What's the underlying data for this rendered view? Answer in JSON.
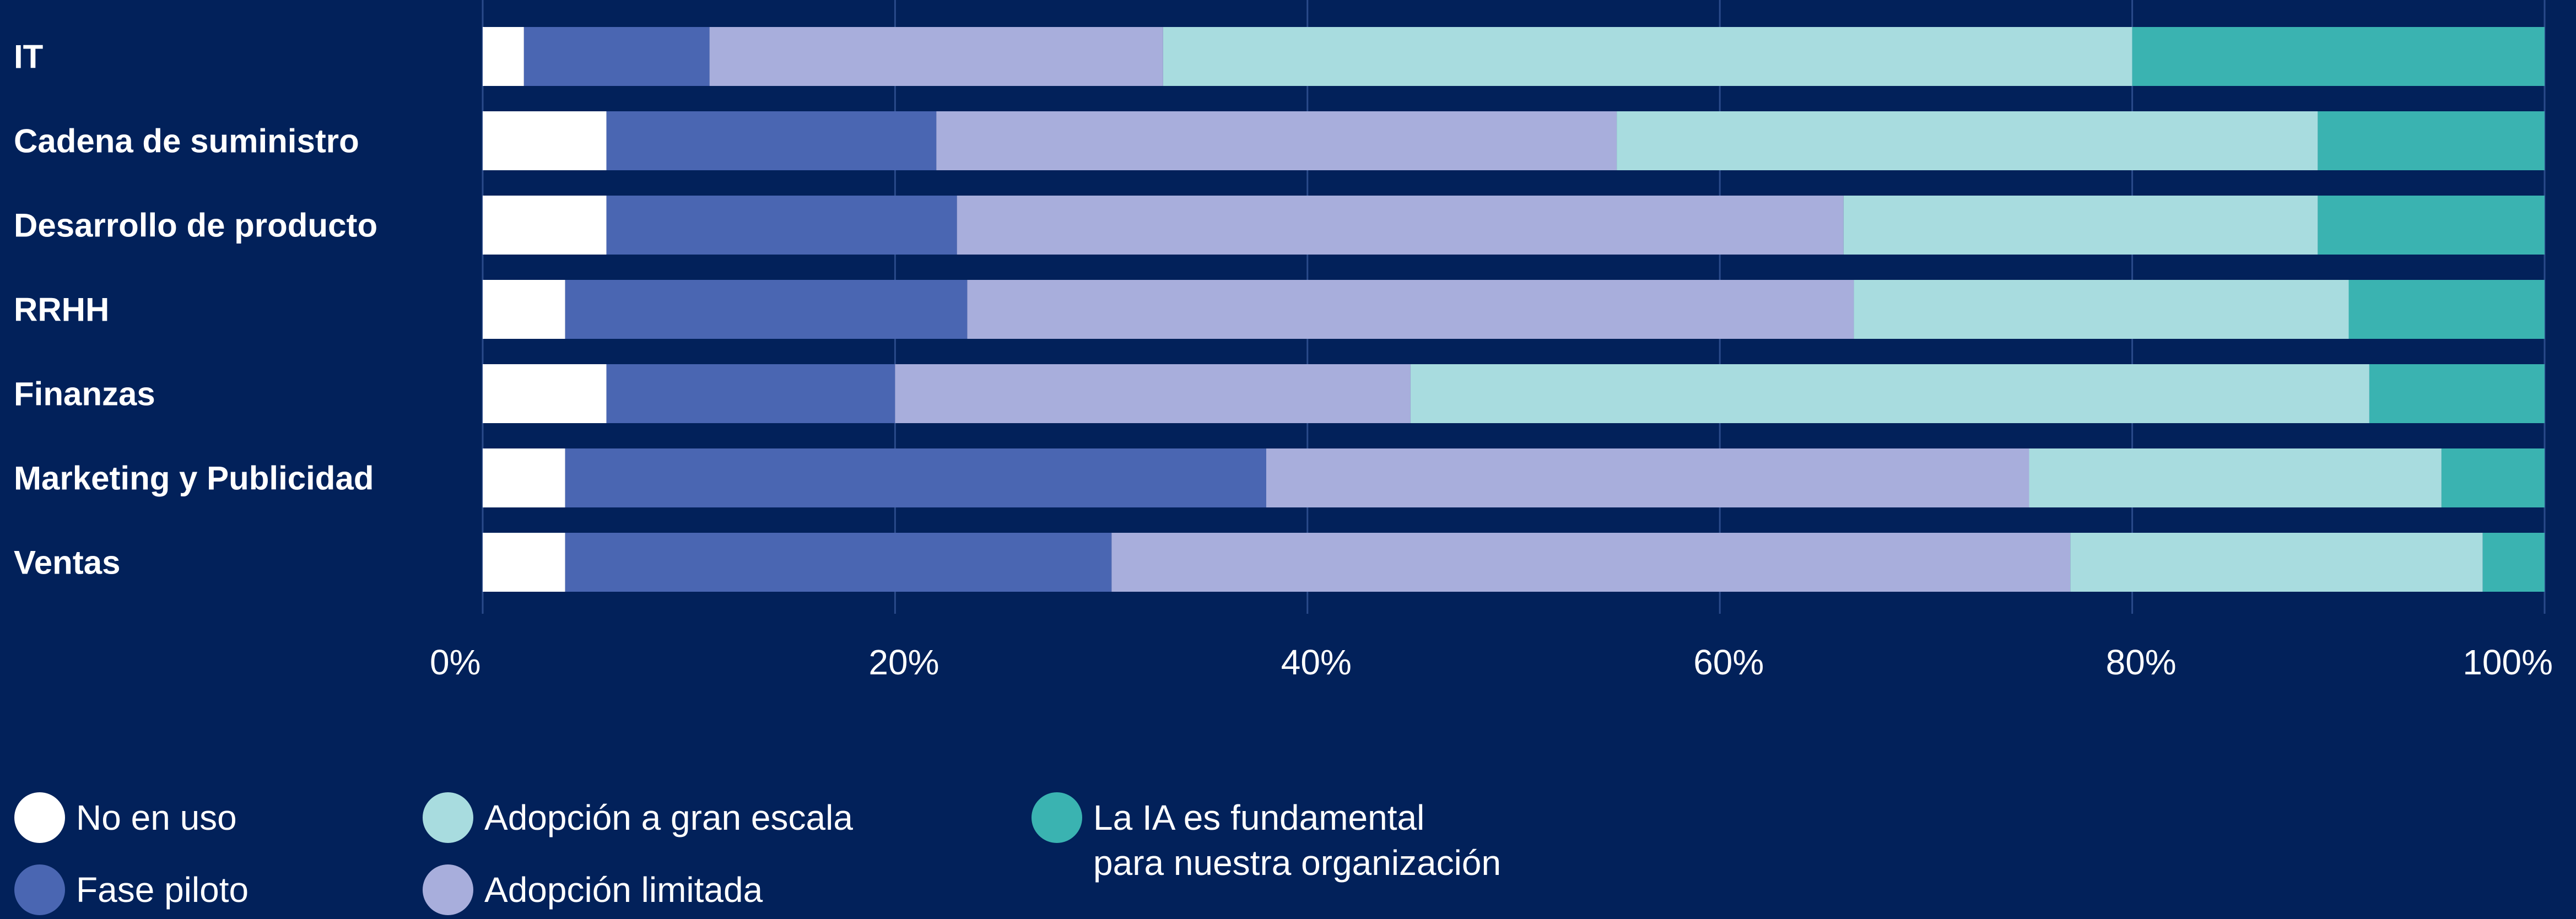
{
  "chart_data": {
    "type": "bar",
    "orientation": "horizontal",
    "stacked": true,
    "normalized": true,
    "categories": [
      "IT",
      "Cadena de suministro",
      "Desarrollo de producto",
      "RRHH",
      "Finanzas",
      "Marketing y Publicidad",
      "Ventas"
    ],
    "series": [
      {
        "name": "No en uso",
        "color": "#ffffff",
        "values": [
          2,
          6,
          6,
          4,
          6,
          4,
          4
        ]
      },
      {
        "name": "Fase piloto",
        "color": "#4a66b2",
        "values": [
          9,
          16,
          17,
          19.5,
          14,
          34,
          26.5
        ]
      },
      {
        "name": "Adopción limitada",
        "color": "#a8aedc",
        "values": [
          22,
          33,
          43,
          43,
          25,
          37,
          46.5
        ]
      },
      {
        "name": "Adopción a gran escala",
        "color": "#a8dcdf",
        "values": [
          47,
          34,
          23,
          24,
          46.5,
          20,
          20
        ]
      },
      {
        "name": "La IA es fundamental para nuestra organización",
        "color": "#3ab3b1",
        "values": [
          20,
          11,
          11,
          9.5,
          8.5,
          5,
          3
        ]
      }
    ],
    "xticks": [
      "0%",
      "20%",
      "40%",
      "60%",
      "80%",
      "100%"
    ],
    "xlim": [
      0,
      100
    ],
    "grid": true,
    "legend_position": "bottom",
    "legend_labels": [
      [
        "No en uso"
      ],
      [
        "Fase piloto"
      ],
      [
        "Adopción a gran escala"
      ],
      [
        "Adopción limitada"
      ],
      [
        "La IA es fundamental",
        "para nuestra organización"
      ]
    ],
    "title": "",
    "xlabel": "",
    "ylabel": ""
  },
  "colors": {
    "background": "#02215a",
    "gridline": "#2a4a8a"
  }
}
